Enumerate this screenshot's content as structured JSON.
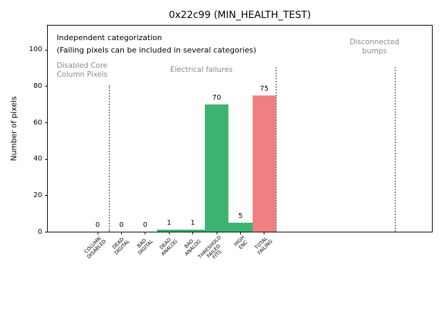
{
  "chart_data": {
    "type": "bar",
    "title": "0x22c99 (MIN_HEALTH_TEST)",
    "xlabel": "",
    "ylabel": "Number of pixels",
    "categories": [
      "COLUMN\nDISABLED",
      "DEAD\nDIGITAL",
      "BAD\nDIGITAL",
      "DEAD\nANALOG",
      "BAD\nANALOG",
      "THRESHOLD\nFAILED\nFITS",
      "HIGH\nENC",
      "TOTAL\nFAILING"
    ],
    "values": [
      0,
      0,
      0,
      1,
      1,
      70,
      5,
      75
    ],
    "bar_labels": [
      "0",
      "0",
      "0",
      "1",
      "1",
      "70",
      "5",
      "75"
    ],
    "bar_colors": [
      "#3cb371",
      "#3cb371",
      "#3cb371",
      "#3cb371",
      "#3cb371",
      "#3cb371",
      "#3cb371",
      "#f08080"
    ],
    "yticks": [
      0,
      20,
      40,
      60,
      80,
      100
    ],
    "ylim": [
      0,
      113
    ],
    "xlim_index": [
      -2.1,
      14.05
    ],
    "grid": false,
    "legend": null,
    "colors": {
      "green_pass_fail_bar": "#3cb371",
      "red_total_bar": "#f08080",
      "gray_text": "#8a8a8a",
      "separator_gray": "#8c8c8c"
    },
    "annotations": [
      {
        "id": "independent-line1",
        "text": "Independent categorization",
        "color": "#000000"
      },
      {
        "id": "independent-line2",
        "text": "(Failing pixels can be included in several categories)",
        "color": "#000000"
      },
      {
        "id": "region-disabled-core",
        "text": "Disabled Core\nColumn Pixels",
        "color": "#8a8a8a"
      },
      {
        "id": "region-electrical",
        "text": "Electrical failures",
        "color": "#8a8a8a"
      },
      {
        "id": "region-disconnected-bumps",
        "text": "Disconnected\nbumps",
        "color": "#8a8a8a"
      }
    ],
    "separators": {
      "style": "dotted",
      "color": "#8c8c8c",
      "x_index": [
        0.5,
        7.5,
        12.5
      ]
    }
  }
}
